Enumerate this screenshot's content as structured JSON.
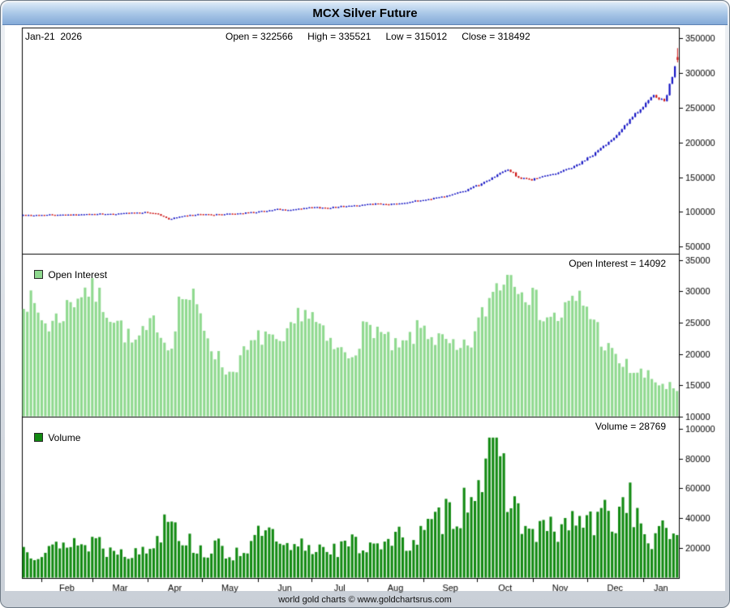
{
  "window": {
    "title": "MCX Silver Future"
  },
  "info_bar": {
    "date": "Jan-21  2026",
    "open": "Open = 322566",
    "high": "High = 335521",
    "low": "Low = 315012",
    "close": "Close = 318492"
  },
  "panels": {
    "open_interest": {
      "legend": "Open Interest",
      "value_label": "Open Interest = 14092"
    },
    "volume": {
      "legend": "Volume",
      "value_label": "Volume = 28769"
    }
  },
  "footer": {
    "credit": "world gold charts © www.goldchartsrus.com"
  },
  "colors": {
    "candle_up": "#1616c4",
    "candle_down": "#cc1414",
    "open_interest_bar": "#8fd98f",
    "volume_bar": "#128a12",
    "titlebar_top": "#dbe9f7",
    "titlebar_bottom": "#84aad8",
    "axis_text": "#000000"
  },
  "chart_data": [
    {
      "type": "candlestick",
      "title": "MCX Silver Future",
      "x_range": "Jan 2025 - Jan 21 2026",
      "x_ticks": [
        "Feb",
        "Mar",
        "Apr",
        "May",
        "Jun",
        "Jul",
        "Aug",
        "Sep",
        "Oct",
        "Nov",
        "Dec",
        "Jan"
      ],
      "ylim": [
        40000,
        365000
      ],
      "yticks": [
        50000,
        100000,
        150000,
        200000,
        250000,
        300000,
        350000
      ],
      "last": {
        "date": "Jan-21 2026",
        "open": 322566,
        "high": 335521,
        "low": 315012,
        "close": 318492
      },
      "up_color": "#1616c4",
      "down_color": "#cc1414",
      "weekly_anchor_closes": [
        95500,
        95200,
        95800,
        96300,
        95600,
        96200,
        97000,
        96400,
        97600,
        98300,
        99200,
        98000,
        89500,
        93500,
        95500,
        96500,
        96000,
        97200,
        98000,
        99500,
        101500,
        103500,
        102500,
        104500,
        106500,
        105500,
        107500,
        108500,
        110000,
        111500,
        110500,
        112500,
        114500,
        117000,
        120000,
        123500,
        128000,
        134000,
        142000,
        152000,
        161000,
        148000,
        146500,
        151000,
        156000,
        162000,
        170000,
        182000,
        196000,
        212000,
        230000,
        250000,
        266000,
        258000,
        326000
      ]
    },
    {
      "type": "bar",
      "name": "Open Interest",
      "ylim": [
        10000,
        36000
      ],
      "yticks": [
        10000,
        15000,
        20000,
        25000,
        30000,
        35000
      ],
      "last": 14092,
      "color": "#8fd98f",
      "weekly_values": [
        29500,
        27000,
        24500,
        26000,
        28500,
        30500,
        29500,
        27000,
        24500,
        21500,
        23000,
        25500,
        20500,
        29500,
        28500,
        24000,
        19500,
        16800,
        19500,
        21500,
        23500,
        20500,
        23000,
        27500,
        25500,
        22000,
        20500,
        19800,
        23500,
        24500,
        22000,
        20500,
        22500,
        24500,
        22500,
        21500,
        20000,
        22000,
        26500,
        31000,
        33000,
        32000,
        29000,
        26500,
        25500,
        27500,
        28800,
        26000,
        21500,
        19000,
        17800,
        16800,
        15800,
        15000,
        14092
      ]
    },
    {
      "type": "bar",
      "name": "Volume",
      "ylim": [
        0,
        108000
      ],
      "yticks": [
        20000,
        40000,
        60000,
        80000,
        100000
      ],
      "last": 28769,
      "color": "#128a12",
      "weekly_values": [
        20000,
        16000,
        24000,
        18000,
        27000,
        20000,
        28000,
        17000,
        22000,
        15000,
        19000,
        24000,
        52000,
        28000,
        22000,
        17000,
        21000,
        15000,
        19000,
        23000,
        34000,
        21000,
        18000,
        22000,
        19000,
        23000,
        18000,
        24000,
        20000,
        26000,
        22000,
        27000,
        24000,
        30000,
        36000,
        44000,
        45000,
        60000,
        78000,
        86000,
        62000,
        40000,
        28000,
        34000,
        30000,
        36000,
        40000,
        34000,
        44000,
        38000,
        60000,
        30000,
        24000,
        32000,
        28769
      ]
    }
  ]
}
